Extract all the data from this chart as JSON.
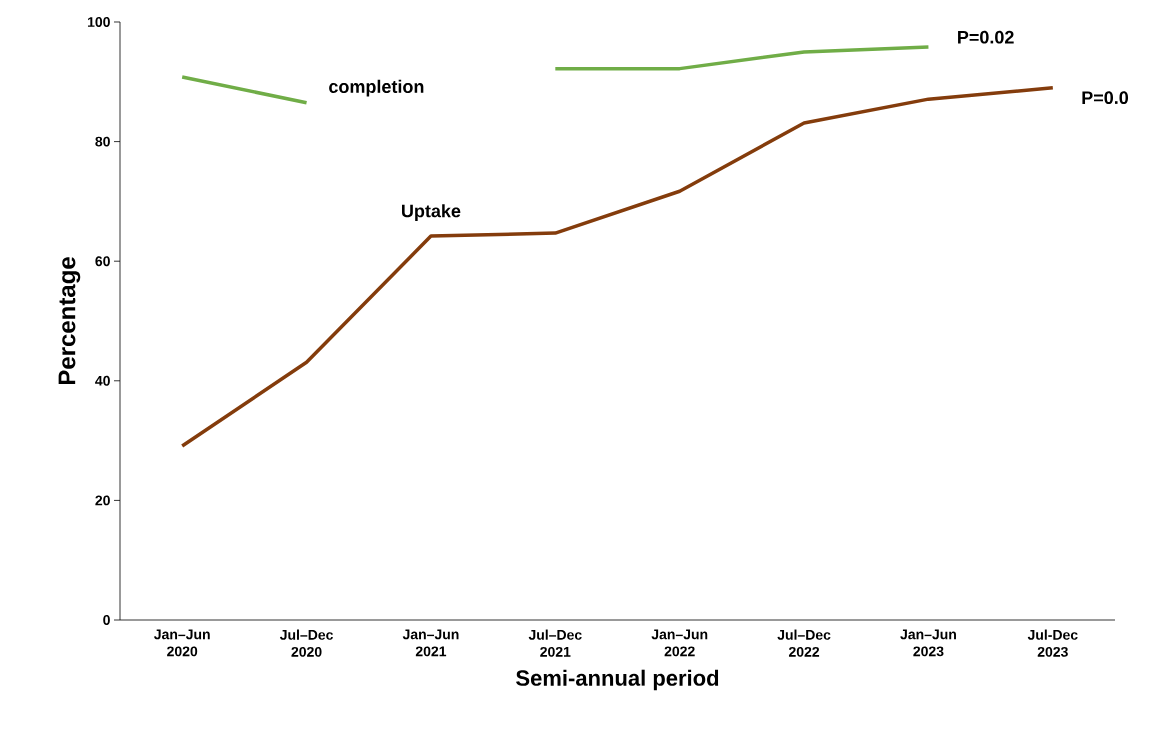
{
  "chart_data": {
    "type": "line",
    "xlabel": "Semi-annual period",
    "ylabel": "Percentage",
    "categories": [
      "Jan–Jun 2020",
      "Jul–Dec 2020",
      "Jan–Jun 2021",
      "Jul–Dec 2021",
      "Jan–Jun 2022",
      "Jul–Dec 2022",
      "Jan–Jun 2023",
      "Jul-Dec 2023"
    ],
    "series": [
      {
        "name": "completion",
        "color": "#70ad47",
        "values": [
          90.8,
          86.5,
          null,
          92.2,
          92.2,
          95.0,
          95.8,
          null
        ]
      },
      {
        "name": "Uptake",
        "color": "#843c0c",
        "values": [
          29.1,
          43.1,
          64.2,
          64.7,
          71.7,
          83.1,
          87.1,
          89.0
        ]
      }
    ],
    "annotations": [
      "P=0.02",
      "P=0.0"
    ],
    "ylim": [
      0,
      100
    ],
    "yticks": [
      0,
      20,
      40,
      60,
      80,
      100
    ],
    "grid": false,
    "marker": "none",
    "line_style": "solid"
  }
}
